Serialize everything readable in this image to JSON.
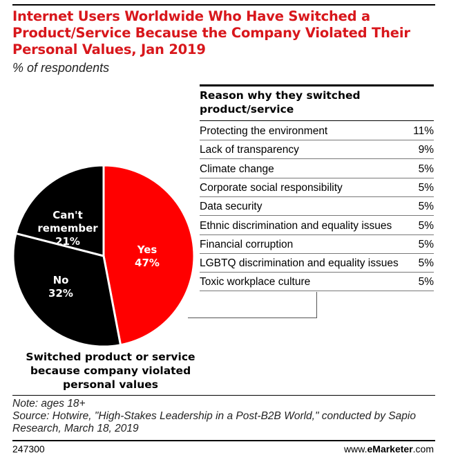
{
  "header": {
    "title": "Internet Users Worldwide Who Have Switched a Product/Service Because the Company Violated Their Personal Values, Jan 2019",
    "subtitle": "% of respondents"
  },
  "chart_data": [
    {
      "type": "pie",
      "caption": "Switched product or service because company violated personal values",
      "slices": [
        {
          "label": "Yes",
          "value": 47,
          "display": "47%",
          "color": "#ff0000"
        },
        {
          "label": "No",
          "value": 32,
          "display": "32%",
          "color": "#000000"
        },
        {
          "label": "Can't remember",
          "value": 21,
          "display": "21%",
          "color": "#000000"
        }
      ]
    },
    {
      "type": "table",
      "title": "Reason why they switched product/service",
      "rows": [
        {
          "label": "Protecting the environment",
          "value": "11%"
        },
        {
          "label": "Lack of transparency",
          "value": "9%"
        },
        {
          "label": "Climate change",
          "value": "5%"
        },
        {
          "label": "Corporate social responsibility",
          "value": "5%"
        },
        {
          "label": "Data security",
          "value": "5%"
        },
        {
          "label": "Ethnic discrimination and equality issues",
          "value": "5%"
        },
        {
          "label": "Financial corruption",
          "value": "5%"
        },
        {
          "label": "LGBTQ discrimination and equality issues",
          "value": "5%"
        },
        {
          "label": "Toxic workplace culture",
          "value": "5%"
        }
      ]
    }
  ],
  "footer": {
    "note": "Note: ages 18+",
    "source": "Source: Hotwire, \"High-Stakes Leadership in a Post-B2B World,\" conducted by Sapio Research, March 18, 2019",
    "chart_id": "247300",
    "brand_prefix": "www.",
    "brand_name": "eMarketer",
    "brand_suffix": ".com"
  }
}
